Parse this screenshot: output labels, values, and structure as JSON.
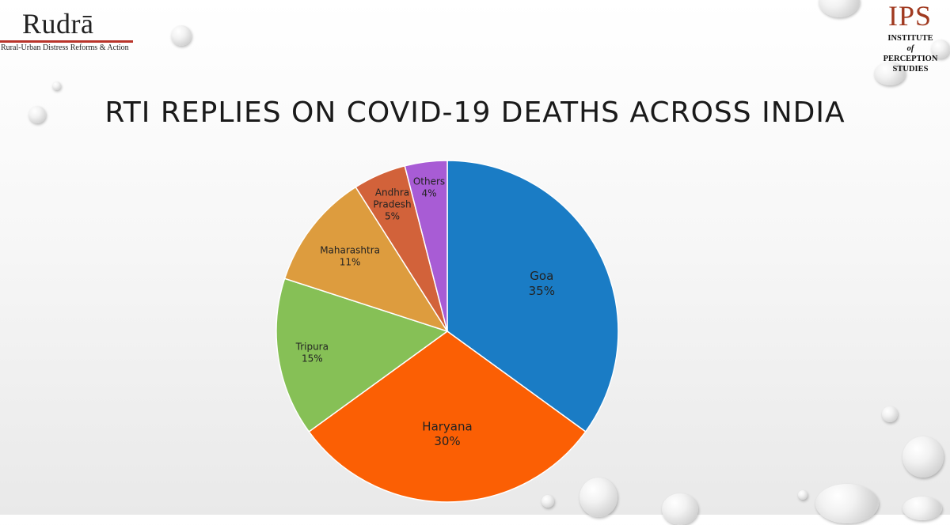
{
  "logos": {
    "rudra": {
      "name": "Rudrā",
      "tagline": "Rural-Urban Distress Reforms & Action",
      "accent": "#b9342a"
    },
    "ips": {
      "name": "IPS",
      "line1": "INSTITUTE",
      "line2": "of",
      "line3": "PERCEPTION",
      "line4": "STUDIES",
      "accent": "#a0391f"
    }
  },
  "chart_data": {
    "type": "pie",
    "title": "RTI REPLIES ON COVID-19 DEATHS ACROSS INDIA",
    "slices": [
      {
        "label": "Goa",
        "value": 35,
        "display": "35%",
        "color": "#1a7cc5"
      },
      {
        "label": "Haryana",
        "value": 30,
        "display": "30%",
        "color": "#fb5f04"
      },
      {
        "label": "Tripura",
        "value": 15,
        "display": "15%",
        "color": "#86c056"
      },
      {
        "label": "Maharashtra",
        "value": 11,
        "display": "11%",
        "color": "#dd9c3e"
      },
      {
        "label": "Andhra Pradesh",
        "value": 5,
        "display": "5%",
        "color": "#d2623a"
      },
      {
        "label": "Others",
        "value": 4,
        "display": "4%",
        "color": "#a85cd5"
      }
    ]
  }
}
